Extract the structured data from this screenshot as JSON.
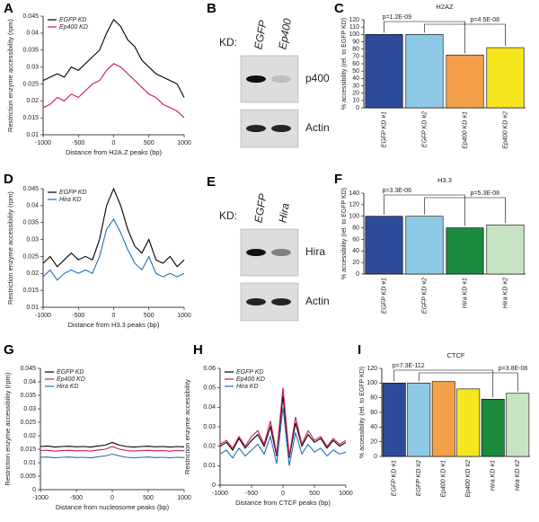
{
  "chart_data": [
    {
      "type": "line",
      "panel": "A",
      "xlabel": "Distance from H2A.Z peaks (bp)",
      "ylabel": "Restriction enzyme accessibility (rpm)",
      "x": [
        -1000,
        -900,
        -800,
        -700,
        -600,
        -500,
        -400,
        -300,
        -200,
        -100,
        0,
        100,
        200,
        300,
        400,
        500,
        600,
        700,
        800,
        900,
        1000
      ],
      "series": [
        {
          "name": "EGFP KD",
          "color": "#000000",
          "values": [
            0.026,
            0.027,
            0.028,
            0.027,
            0.03,
            0.029,
            0.031,
            0.033,
            0.035,
            0.04,
            0.044,
            0.042,
            0.038,
            0.036,
            0.032,
            0.03,
            0.028,
            0.027,
            0.026,
            0.025,
            0.021
          ]
        },
        {
          "name": "Ep400 KD",
          "color": "#d0164f",
          "values": [
            0.018,
            0.019,
            0.021,
            0.02,
            0.022,
            0.021,
            0.023,
            0.025,
            0.026,
            0.029,
            0.031,
            0.03,
            0.028,
            0.026,
            0.024,
            0.022,
            0.021,
            0.019,
            0.018,
            0.017,
            0.015
          ]
        }
      ],
      "xlim": [
        -1000,
        1000
      ],
      "xticks": [
        -1000,
        -500,
        0,
        500,
        1000
      ],
      "ylim": [
        0.01,
        0.045
      ],
      "yticks": [
        0.01,
        0.015,
        0.02,
        0.025,
        0.03,
        0.035,
        0.04,
        0.045
      ],
      "legend": "upper left"
    },
    {
      "type": "bar",
      "panel": "C",
      "title": "H2AZ",
      "ylabel": "% accessibility (rel. to EGFP KD)",
      "categories": [
        "EGFP KD #1",
        "EGFP KD #2",
        "Ep400 KD #1",
        "Ep400 KD #2"
      ],
      "values": [
        100,
        100,
        72,
        82
      ],
      "colors": [
        "#2e4a9b",
        "#8ecae6",
        "#f4a04a",
        "#f5e61e"
      ],
      "ylim": [
        0,
        120
      ],
      "yticks": [
        0,
        10,
        20,
        30,
        40,
        50,
        60,
        70,
        80,
        90,
        100,
        110,
        120
      ],
      "annotations": [
        "p=1.2E-09",
        "p=4.5E-08"
      ]
    },
    {
      "type": "line",
      "panel": "D",
      "xlabel": "Distance from H3.3 peaks (bp)",
      "ylabel": "Restriction enzyme accessibility (rpm)",
      "x": [
        -1000,
        -900,
        -800,
        -700,
        -600,
        -500,
        -400,
        -300,
        -200,
        -100,
        0,
        100,
        200,
        300,
        400,
        500,
        600,
        700,
        800,
        900,
        1000
      ],
      "series": [
        {
          "name": "EGFP KD",
          "color": "#000000",
          "values": [
            0.023,
            0.025,
            0.022,
            0.024,
            0.026,
            0.024,
            0.025,
            0.024,
            0.03,
            0.04,
            0.045,
            0.04,
            0.033,
            0.028,
            0.026,
            0.03,
            0.024,
            0.023,
            0.025,
            0.022,
            0.024
          ]
        },
        {
          "name": "Hira KD",
          "color": "#1f6fb5",
          "values": [
            0.019,
            0.021,
            0.018,
            0.02,
            0.021,
            0.02,
            0.021,
            0.02,
            0.025,
            0.033,
            0.036,
            0.032,
            0.027,
            0.023,
            0.021,
            0.025,
            0.02,
            0.019,
            0.02,
            0.019,
            0.02
          ]
        }
      ],
      "xlim": [
        -1000,
        1000
      ],
      "xticks": [
        -1000,
        -500,
        0,
        500,
        1000
      ],
      "ylim": [
        0.01,
        0.045
      ],
      "yticks": [
        0.01,
        0.015,
        0.02,
        0.025,
        0.03,
        0.035,
        0.04,
        0.045
      ],
      "legend": "upper left"
    },
    {
      "type": "bar",
      "panel": "F",
      "title": "H3.3",
      "ylabel": "% accessibility (rel. to EGFP KD)",
      "categories": [
        "EGFP KD #1",
        "EGFP KD #2",
        "Hira KD #1",
        "Hira KD #2"
      ],
      "values": [
        100,
        100,
        80,
        85
      ],
      "colors": [
        "#2e4a9b",
        "#8ecae6",
        "#1a8a3c",
        "#c8e3c3"
      ],
      "ylim": [
        0,
        140
      ],
      "yticks": [
        0,
        20,
        40,
        60,
        80,
        100,
        120,
        140
      ],
      "annotations": [
        "p=3.3E-06",
        "p=5.3E-08"
      ]
    },
    {
      "type": "line",
      "panel": "G",
      "xlabel": "Distance from nucleosome peaks (bp)",
      "ylabel": "Restriction enzyme accessibility (rpm)",
      "x": [
        -1000,
        -900,
        -800,
        -700,
        -600,
        -500,
        -400,
        -300,
        -200,
        -100,
        0,
        100,
        200,
        300,
        400,
        500,
        600,
        700,
        800,
        900,
        1000
      ],
      "series": [
        {
          "name": "EGFP KD",
          "color": "#000000",
          "values": [
            0.016,
            0.0162,
            0.0158,
            0.016,
            0.0161,
            0.0159,
            0.016,
            0.0158,
            0.0162,
            0.0165,
            0.0175,
            0.0165,
            0.016,
            0.0158,
            0.016,
            0.0161,
            0.0159,
            0.016,
            0.0158,
            0.016,
            0.0159
          ]
        },
        {
          "name": "Ep400 KD",
          "color": "#d0164f",
          "values": [
            0.0145,
            0.0146,
            0.0143,
            0.0145,
            0.0146,
            0.0144,
            0.0145,
            0.0143,
            0.0147,
            0.015,
            0.016,
            0.015,
            0.0145,
            0.0143,
            0.0145,
            0.0146,
            0.0144,
            0.0145,
            0.0143,
            0.0145,
            0.0144
          ]
        },
        {
          "name": "Hira KD",
          "color": "#1f6fb5",
          "values": [
            0.012,
            0.0121,
            0.0118,
            0.012,
            0.0121,
            0.0119,
            0.012,
            0.0118,
            0.0122,
            0.0125,
            0.0132,
            0.0125,
            0.012,
            0.0118,
            0.012,
            0.0121,
            0.0119,
            0.012,
            0.0118,
            0.012,
            0.0119
          ]
        }
      ],
      "xlim": [
        -1000,
        1000
      ],
      "xticks": [
        -1000,
        -500,
        0,
        500,
        1000
      ],
      "ylim": [
        0,
        0.045
      ],
      "yticks": [
        0,
        0.005,
        0.01,
        0.015,
        0.02,
        0.025,
        0.03,
        0.035,
        0.04,
        0.045
      ],
      "legend": "upper left"
    },
    {
      "type": "line",
      "panel": "H",
      "xlabel": "Distance from CTCF peaks (bp)",
      "ylabel": "Restriction enzyme accessibility",
      "x": [
        -1000,
        -900,
        -800,
        -700,
        -600,
        -500,
        -400,
        -300,
        -200,
        -100,
        0,
        100,
        200,
        300,
        400,
        500,
        600,
        700,
        800,
        900,
        1000
      ],
      "series": [
        {
          "name": "EGFP KD",
          "color": "#000000",
          "values": [
            0.02,
            0.022,
            0.018,
            0.024,
            0.019,
            0.023,
            0.026,
            0.02,
            0.03,
            0.015,
            0.046,
            0.014,
            0.032,
            0.02,
            0.026,
            0.022,
            0.024,
            0.019,
            0.023,
            0.02,
            0.022
          ]
        },
        {
          "name": "Ep400 KD",
          "color": "#d0164f",
          "values": [
            0.021,
            0.023,
            0.019,
            0.025,
            0.02,
            0.025,
            0.028,
            0.021,
            0.033,
            0.016,
            0.05,
            0.015,
            0.035,
            0.021,
            0.028,
            0.023,
            0.025,
            0.02,
            0.024,
            0.021,
            0.023
          ]
        },
        {
          "name": "Hira KD",
          "color": "#1f6fb5",
          "values": [
            0.016,
            0.018,
            0.014,
            0.019,
            0.015,
            0.018,
            0.021,
            0.016,
            0.025,
            0.011,
            0.04,
            0.01,
            0.027,
            0.016,
            0.021,
            0.017,
            0.019,
            0.015,
            0.018,
            0.016,
            0.017
          ]
        }
      ],
      "xlim": [
        -1000,
        1000
      ],
      "xticks": [
        -1000,
        -500,
        0,
        500,
        1000
      ],
      "ylim": [
        0,
        0.06
      ],
      "yticks": [
        0,
        0.01,
        0.02,
        0.03,
        0.04,
        0.05,
        0.06
      ],
      "legend": "upper left"
    },
    {
      "type": "bar",
      "panel": "I",
      "title": "CTCF",
      "ylabel": "% accessibility (rel. to EGFP KD)",
      "categories": [
        "EGFP KD #1",
        "EGFP KD #2",
        "Ep400 KD #1",
        "Ep400 KD #2",
        "Hira KD #1",
        "Hira KD #2"
      ],
      "values": [
        100,
        100,
        102,
        92,
        78,
        86
      ],
      "colors": [
        "#2e4a9b",
        "#8ecae6",
        "#f4a04a",
        "#f5e61e",
        "#1a8a3c",
        "#c8e3c3"
      ],
      "ylim": [
        0,
        120
      ],
      "yticks": [
        0,
        20,
        40,
        60,
        80,
        100,
        120
      ],
      "annotations": [
        "p=7.3E-112",
        "p=3.8E-08"
      ]
    }
  ],
  "blots": [
    {
      "panel": "B",
      "kd_label": "KD:",
      "lanes": [
        "EGFP",
        "Ep400"
      ],
      "bands": [
        "p400",
        "Actin"
      ]
    },
    {
      "panel": "E",
      "kd_label": "KD:",
      "lanes": [
        "EGFP",
        "Hira"
      ],
      "bands": [
        "Hira",
        "Actin"
      ]
    }
  ]
}
